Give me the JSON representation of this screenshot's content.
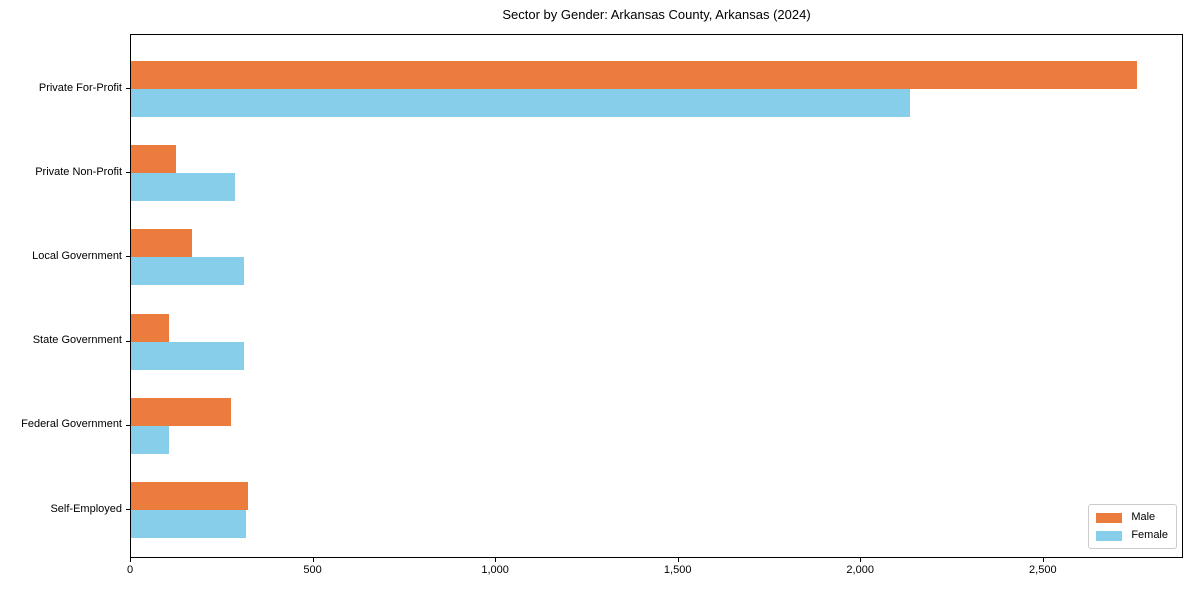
{
  "title": "Sector by Gender: Arkansas County, Arkansas (2024)",
  "colors": {
    "male": "#ec7b3e",
    "female": "#87ceeb",
    "spine": "#000000",
    "text": "#000000",
    "legend_border": "#cccccc",
    "background": "#ffffff"
  },
  "legend": {
    "items": [
      {
        "label": "Male",
        "color": "#ec7b3e"
      },
      {
        "label": "Female",
        "color": "#87ceeb"
      }
    ],
    "position": "lower right"
  },
  "chart_data": {
    "type": "bar",
    "orientation": "horizontal",
    "title": "Sector by Gender: Arkansas County, Arkansas (2024)",
    "categories": [
      "Private For-Profit",
      "Private Non-Profit",
      "Local Government",
      "State Government",
      "Federal Government",
      "Self-Employed"
    ],
    "series": [
      {
        "name": "Male",
        "color": "#ec7b3e",
        "values": [
          2756,
          123,
          167,
          104,
          275,
          321
        ]
      },
      {
        "name": "Female",
        "color": "#87ceeb",
        "values": [
          2134,
          285,
          310,
          309,
          104,
          314
        ]
      }
    ],
    "xlabel": "",
    "ylabel": "",
    "xlim": [
      0,
      2884
    ],
    "x_ticks": [
      0,
      500,
      1000,
      1500,
      2000,
      2500
    ],
    "x_tick_labels": [
      "0",
      "500",
      "1,000",
      "1,500",
      "2,000",
      "2,500"
    ],
    "grid": false,
    "legend_position": "lower right"
  }
}
